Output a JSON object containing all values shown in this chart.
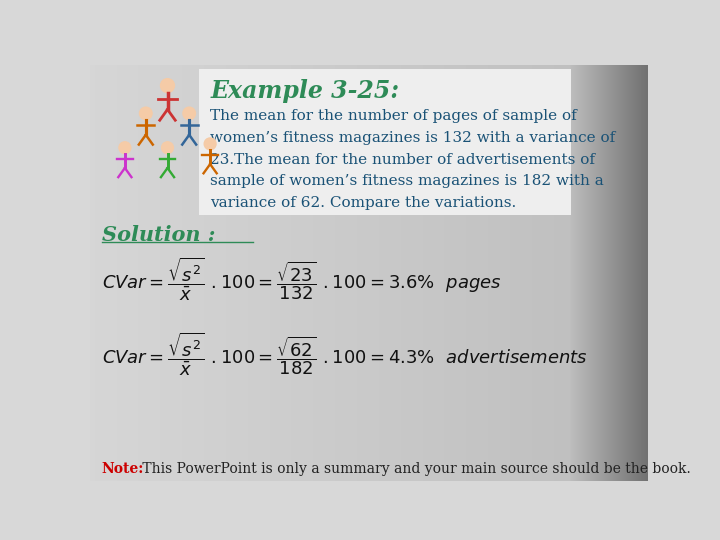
{
  "title": "Example 3-25:",
  "title_color": "#2e8b57",
  "body_text_line1": "The mean for the number of pages of sample of",
  "body_text_line2": "women’s fitness magazines is 132 with a variance of",
  "body_text_line3": "23.The mean for the number of advertisements of",
  "body_text_line4": "sample of women’s fitness magazines is 182 with a",
  "body_text_line5": "variance of 62. Compare the variations.",
  "body_color": "#1a5276",
  "solution_label": "Solution :",
  "solution_color": "#2e8b57",
  "note_label": "Note:",
  "note_label_color": "#cc0000",
  "note_text": " This PowerPoint is only a summary and your main source should be the book.",
  "note_text_color": "#222222",
  "formula_color": "#111111",
  "bg_gradient_left": "#d8d8d8",
  "bg_gradient_right": "#888888",
  "white_box_color": "#e8e8e8"
}
